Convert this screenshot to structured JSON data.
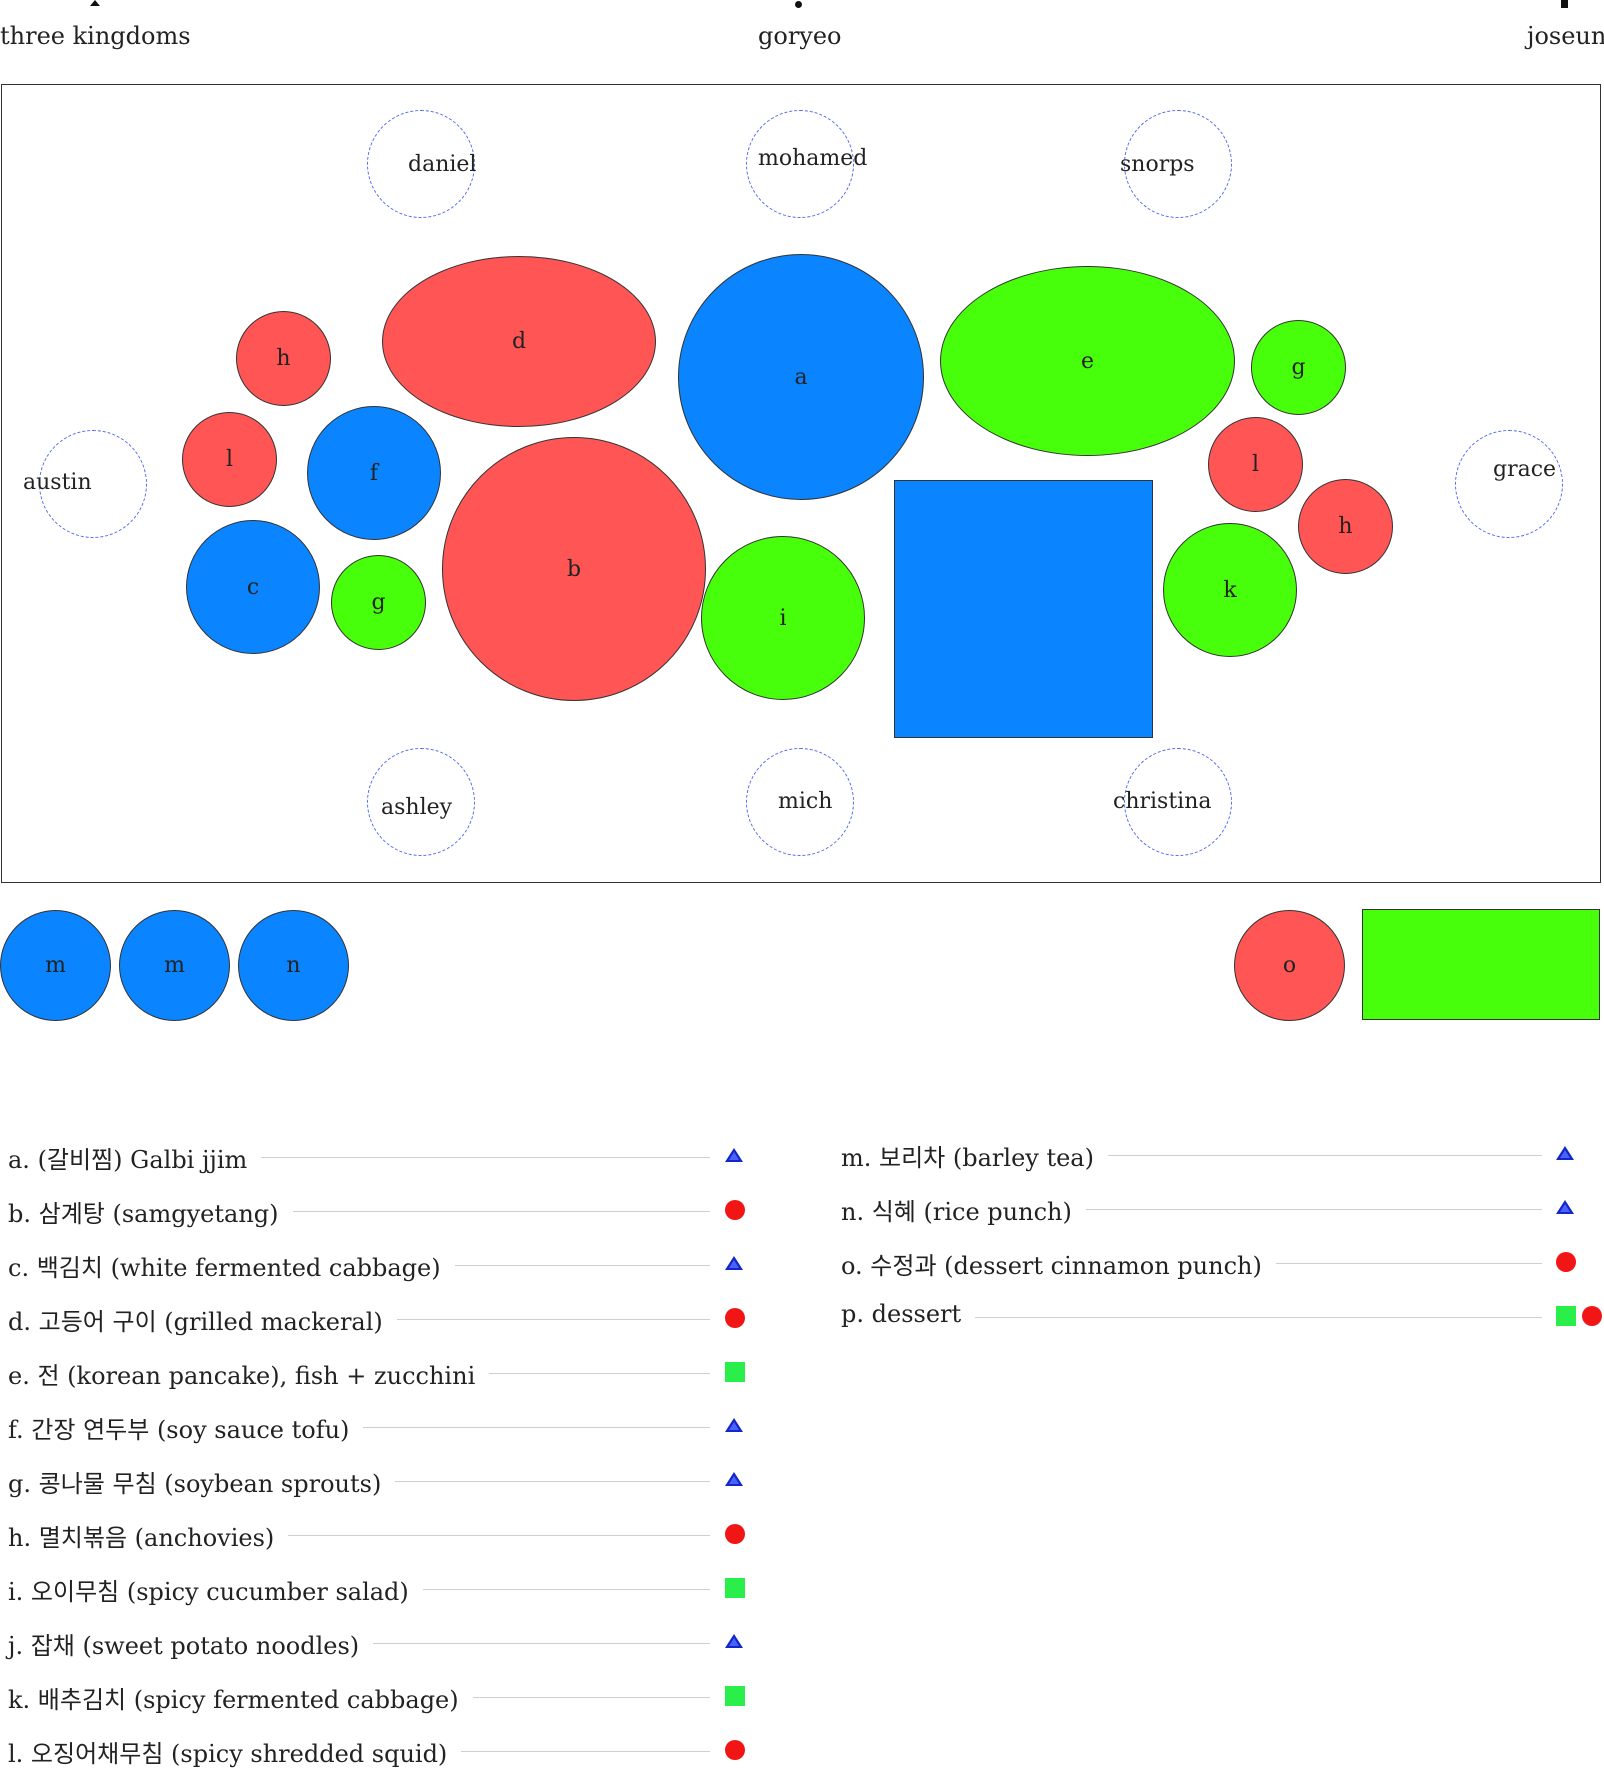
{
  "timeline": {
    "left": "three kingdoms",
    "center": "goryeo",
    "right": "joseun"
  },
  "colors": {
    "red": "#ff5555",
    "blue": "#0a84ff",
    "green": "#47ff0a",
    "seat_border": "#4f6bf0",
    "legend_triangle": "#1326c8",
    "legend_circle": "#f21515",
    "legend_square": "#2aee4a"
  },
  "seats": {
    "top_left": "daniel",
    "top_center": "mohamed",
    "top_right": "snorps",
    "left": "austin",
    "right": "grace",
    "bottom_left": "ashley",
    "bottom_center": "mich",
    "bottom_right": "christina"
  },
  "dishes": [
    {
      "label": "h",
      "color": "red"
    },
    {
      "label": "d",
      "color": "red"
    },
    {
      "label": "a",
      "color": "blue"
    },
    {
      "label": "e",
      "color": "green"
    },
    {
      "label": "g",
      "color": "green"
    },
    {
      "label": "l",
      "color": "red"
    },
    {
      "label": "f",
      "color": "blue"
    },
    {
      "label": "l",
      "color": "red"
    },
    {
      "label": "h",
      "color": "red"
    },
    {
      "label": "c",
      "color": "blue"
    },
    {
      "label": "g",
      "color": "green"
    },
    {
      "label": "b",
      "color": "red"
    },
    {
      "label": "i",
      "color": "green"
    },
    {
      "label": "",
      "color": "blue"
    },
    {
      "label": "k",
      "color": "green"
    }
  ],
  "side_dishes": [
    {
      "label": "m",
      "color": "blue"
    },
    {
      "label": "m",
      "color": "blue"
    },
    {
      "label": "n",
      "color": "blue"
    },
    {
      "label": "o",
      "color": "red"
    },
    {
      "label": "",
      "color": "green"
    }
  ],
  "legend": {
    "left": [
      {
        "text": "a. (갈비찜) Galbi jjim",
        "symbol": "triangle-icon"
      },
      {
        "text": "b. 삼계탕 (samgyetang)",
        "symbol": "circle-icon"
      },
      {
        "text": "c. 백김치 (white fermented cabbage)",
        "symbol": "triangle-icon"
      },
      {
        "text": "d. 고등어 구이 (grilled mackeral)",
        "symbol": "circle-icon"
      },
      {
        "text": "e. 전 (korean pancake), fish + zucchini",
        "symbol": "square-icon"
      },
      {
        "text": "f. 간장 연두부 (soy sauce tofu)",
        "symbol": "triangle-icon"
      },
      {
        "text": "g. 콩나물 무침 (soybean sprouts)",
        "symbol": "triangle-icon"
      },
      {
        "text": "h. 멸치볶음 (anchovies)",
        "symbol": "circle-icon"
      },
      {
        "text": "i. 오이무침 (spicy cucumber salad)",
        "symbol": "square-icon"
      },
      {
        "text": "j. 잡채 (sweet potato noodles)",
        "symbol": "triangle-icon"
      },
      {
        "text": "k. 배추김치 (spicy fermented cabbage)",
        "symbol": "square-icon"
      },
      {
        "text": "l. 오징어채무침 (spicy shredded squid)",
        "symbol": "circle-icon"
      }
    ],
    "right": [
      {
        "text": "m. 보리차 (barley tea)",
        "symbol": "triangle-icon"
      },
      {
        "text": "n. 식혜 (rice punch)",
        "symbol": "triangle-icon"
      },
      {
        "text": "o. 수정과 (dessert cinnamon punch)",
        "symbol": "circle-icon"
      },
      {
        "text": "p. dessert",
        "symbol": "square-icon circle-icon"
      }
    ]
  }
}
